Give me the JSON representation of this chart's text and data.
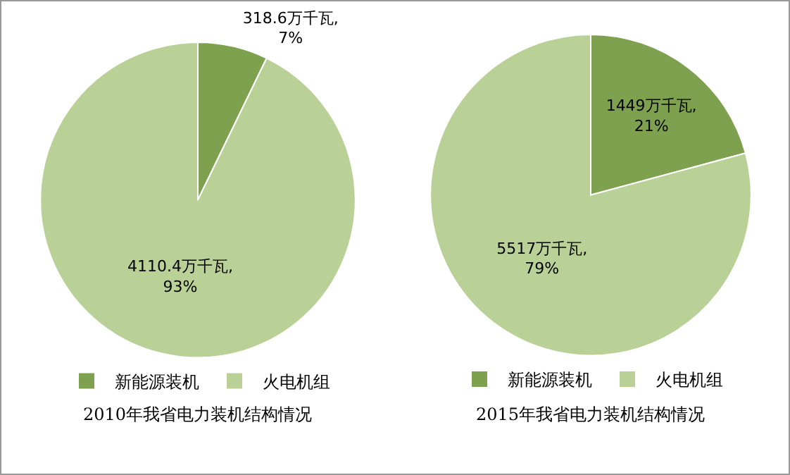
{
  "chart_data": [
    {
      "type": "pie",
      "title": "2010年我省电力装机结构情况",
      "categories": [
        "新能源装机",
        "火电机组"
      ],
      "values": [
        318.6,
        4110.4
      ],
      "colors": [
        "#7ea14f",
        "#b9d096"
      ],
      "value_labels": [
        "318.6万千瓦, 7%",
        "4110.4万千瓦, 93%"
      ],
      "legend": "bottom"
    },
    {
      "type": "pie",
      "title": "2015年我省电力装机结构情况",
      "categories": [
        "新能源装机",
        "火电机组"
      ],
      "values": [
        1449,
        5517
      ],
      "colors": [
        "#7ea14f",
        "#b9d096"
      ],
      "value_labels": [
        "1449万千瓦, 21%",
        "5517万千瓦, 79%"
      ],
      "legend": "bottom"
    }
  ]
}
